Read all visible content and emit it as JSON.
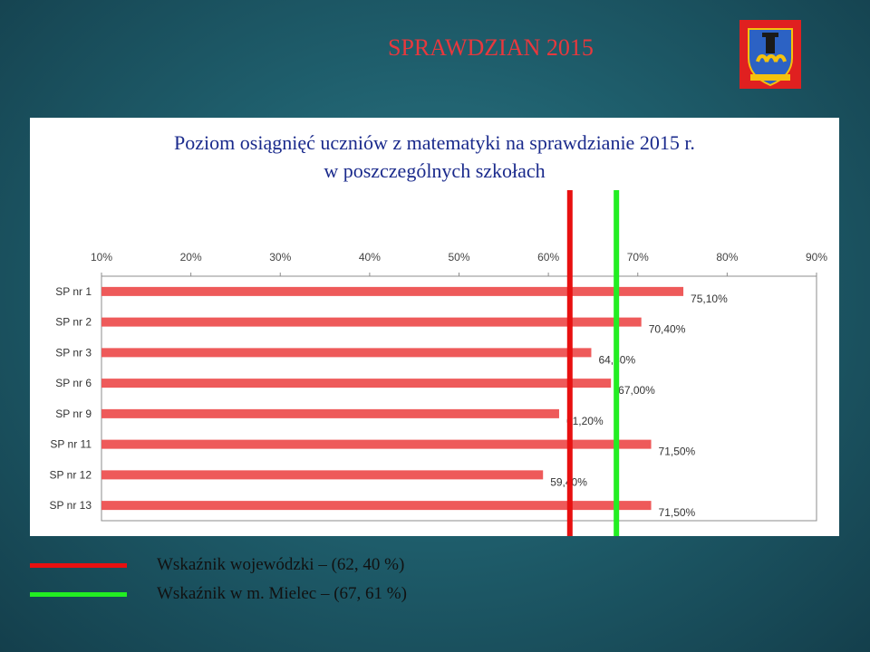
{
  "slide": {
    "title": "SPRAWDZIAN 2015"
  },
  "logo": {
    "icon": "city-coat-of-arms-icon",
    "colors": {
      "shield": "#2c62c4",
      "accent": "#f4c20d",
      "border": "#e02020"
    }
  },
  "chart_data": {
    "type": "bar",
    "orientation": "horizontal",
    "title_line1": "Poziom osiągnięć uczniów z matematyki na sprawdzianie 2015 r.",
    "title_line2": "w poszczególnych szkołach",
    "categories": [
      "SP nr 1",
      "SP nr 2",
      "SP nr 3",
      "SP nr 6",
      "SP nr 9",
      "SP nr 11",
      "SP nr 12",
      "SP nr 13"
    ],
    "values": [
      75.1,
      70.4,
      64.8,
      67.0,
      61.2,
      71.5,
      59.4,
      71.5
    ],
    "value_labels": [
      "75,10%",
      "70,40%",
      "64,80%",
      "67,00%",
      "61,20%",
      "71,50%",
      "59,40%",
      "71,50%"
    ],
    "xlim": [
      10,
      90
    ],
    "xticks": [
      "10%",
      "20%",
      "30%",
      "40%",
      "50%",
      "60%",
      "70%",
      "80%",
      "90%"
    ],
    "axis_position": "top",
    "bar_color": "#ee5a5a",
    "reference_lines": [
      {
        "value": 62.4,
        "color": "#e81010"
      },
      {
        "value": 67.61,
        "color": "#22ee22"
      }
    ]
  },
  "legend": {
    "items": [
      {
        "label": "Wskaźnik wojewódzki – (62, 40 %)",
        "color": "#e81010"
      },
      {
        "label": "Wskaźnik w m. Mielec – (67, 61 %)",
        "color": "#22ee22"
      }
    ]
  }
}
